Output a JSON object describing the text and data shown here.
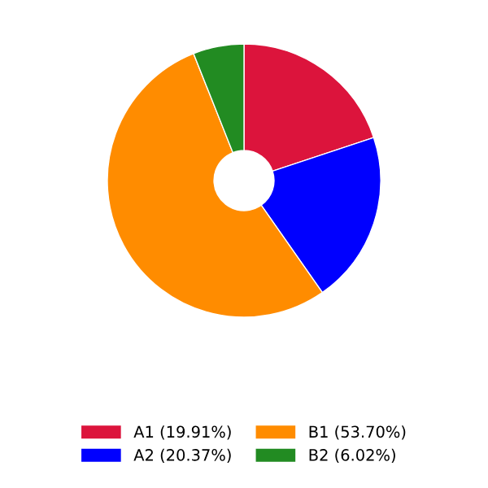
{
  "chart_data": {
    "type": "donut",
    "categories": [
      "A1 (19.91%)",
      "A2 (20.37%)",
      "B1 (53.70%)",
      "B2 (6.02%)"
    ],
    "values": [
      19.91,
      20.37,
      53.7,
      6.02
    ],
    "colors": [
      "#dc143c",
      "#0000ff",
      "#ff8c00",
      "#228b22"
    ],
    "legend": "bottom"
  }
}
